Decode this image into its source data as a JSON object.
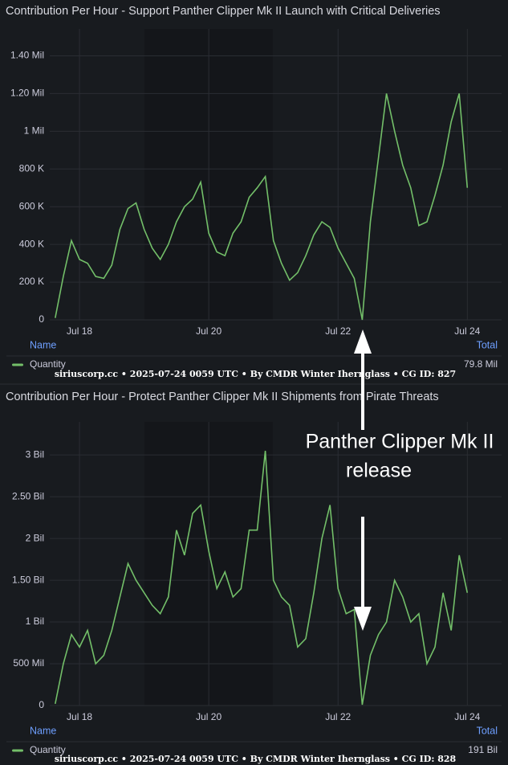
{
  "chart_data": [
    {
      "type": "line",
      "title": "Contribution Per Hour - Support Panther Clipper Mk II Launch with Critical Deliveries",
      "x": [
        17.625,
        17.75,
        17.875,
        18.0,
        18.125,
        18.25,
        18.375,
        18.5,
        18.625,
        18.75,
        18.875,
        19.0,
        19.125,
        19.25,
        19.375,
        19.5,
        19.625,
        19.75,
        19.875,
        20.0,
        20.125,
        20.25,
        20.375,
        20.5,
        20.625,
        20.75,
        20.875,
        21.0,
        21.125,
        21.25,
        21.375,
        21.5,
        21.625,
        21.75,
        21.875,
        22.0,
        22.125,
        22.25,
        22.375,
        22.5,
        22.625,
        22.75,
        22.875,
        23.0,
        23.125,
        23.25,
        23.375,
        23.5,
        23.625,
        23.75,
        23.875,
        24.0
      ],
      "xlim": [
        17.54,
        24.53
      ],
      "xticks": [
        {
          "value": 18,
          "label": "Jul 18"
        },
        {
          "value": 20,
          "label": "Jul 20"
        },
        {
          "value": 22,
          "label": "Jul 22"
        },
        {
          "value": 24,
          "label": "Jul 24"
        }
      ],
      "ylim": [
        0,
        1500000
      ],
      "yticks": [
        0,
        {
          "value": 200000,
          "label": "200 K"
        },
        {
          "value": 400000,
          "label": "400 K"
        },
        {
          "value": 600000,
          "label": "600 K"
        },
        {
          "value": 800000,
          "label": "800 K"
        },
        {
          "value": 1000000,
          "label": "1 Mil"
        },
        {
          "value": 1200000,
          "label": "1.20 Mil"
        },
        {
          "value": 1400000,
          "label": "1.40 Mil"
        }
      ],
      "grid": true,
      "series": [
        {
          "name": "Quantity",
          "color": "#73bf69",
          "values": [
            10000,
            230000,
            420000,
            320000,
            300000,
            230000,
            220000,
            290000,
            480000,
            590000,
            620000,
            480000,
            380000,
            320000,
            400000,
            520000,
            600000,
            640000,
            730000,
            460000,
            360000,
            340000,
            460000,
            520000,
            650000,
            700000,
            760000,
            420000,
            300000,
            210000,
            250000,
            340000,
            450000,
            520000,
            490000,
            380000,
            300000,
            220000,
            0,
            520000,
            860000,
            1200000,
            1000000,
            820000,
            700000,
            500000,
            520000,
            660000,
            820000,
            1050000,
            1200000,
            700000
          ]
        }
      ],
      "legend": {
        "headers": [
          "Name",
          "Total"
        ],
        "total": "79.8 Mil"
      },
      "footer": "siriuscorp.cc • 2025-07-24 0059 UTC • By CMDR Winter Ihernglass • CG ID: 827"
    },
    {
      "type": "line",
      "title": "Contribution Per Hour - Protect Panther Clipper Mk II Shipments from Pirate Threats",
      "x": [
        17.625,
        17.75,
        17.875,
        18.0,
        18.125,
        18.25,
        18.375,
        18.5,
        18.625,
        18.75,
        18.875,
        19.0,
        19.125,
        19.25,
        19.375,
        19.5,
        19.625,
        19.75,
        19.875,
        20.0,
        20.125,
        20.25,
        20.375,
        20.5,
        20.625,
        20.75,
        20.875,
        21.0,
        21.125,
        21.25,
        21.375,
        21.5,
        21.625,
        21.75,
        21.875,
        22.0,
        22.125,
        22.25,
        22.375,
        22.5,
        22.625,
        22.75,
        22.875,
        23.0,
        23.125,
        23.25,
        23.375,
        23.5,
        23.625,
        23.75,
        23.875,
        24.0
      ],
      "xlim": [
        17.54,
        24.53
      ],
      "xticks": [
        {
          "value": 18,
          "label": "Jul 18"
        },
        {
          "value": 20,
          "label": "Jul 20"
        },
        {
          "value": 22,
          "label": "Jul 22"
        },
        {
          "value": 24,
          "label": "Jul 24"
        }
      ],
      "ylim": [
        0,
        3300000000
      ],
      "yticks": [
        0,
        {
          "value": 500000000,
          "label": "500 Mil"
        },
        {
          "value": 1000000000,
          "label": "1 Bil"
        },
        {
          "value": 1500000000,
          "label": "1.50 Bil"
        },
        {
          "value": 2000000000,
          "label": "2 Bil"
        },
        {
          "value": 2500000000,
          "label": "2.50 Bil"
        },
        {
          "value": 3000000000,
          "label": "3 Bil"
        }
      ],
      "grid": true,
      "series": [
        {
          "name": "Quantity",
          "color": "#73bf69",
          "values": [
            20000000,
            500000000,
            850000000,
            700000000,
            900000000,
            500000000,
            600000000,
            900000000,
            1300000000,
            1700000000,
            1500000000,
            1350000000,
            1200000000,
            1100000000,
            1300000000,
            2100000000,
            1800000000,
            2300000000,
            2400000000,
            1850000000,
            1400000000,
            1600000000,
            1300000000,
            1400000000,
            2100000000,
            2100000000,
            3050000000,
            1500000000,
            1300000000,
            1200000000,
            700000000,
            800000000,
            1350000000,
            2000000000,
            2400000000,
            1400000000,
            1100000000,
            1150000000,
            10000000,
            600000000,
            850000000,
            1000000000,
            1500000000,
            1300000000,
            1000000000,
            1100000000,
            500000000,
            700000000,
            1350000000,
            900000000,
            1800000000,
            1350000000
          ]
        }
      ],
      "legend": {
        "headers": [
          "Name",
          "Total"
        ],
        "total": "191 Bil"
      },
      "footer": "siriuscorp.cc • 2025-07-24 0059 UTC • By CMDR Winter Ihernglass • CG ID: 828"
    }
  ],
  "annotation": {
    "lines": [
      "Panther Clipper Mk II",
      "release"
    ]
  }
}
